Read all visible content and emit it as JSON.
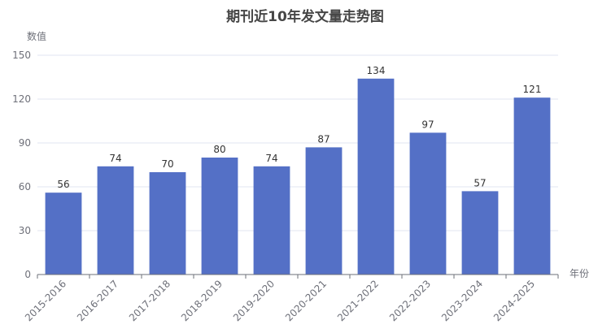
{
  "chart_data": {
    "type": "bar",
    "title": "期刊近10年发文量走势图",
    "xlabel": "年份",
    "ylabel": "数值",
    "categories": [
      "2015-2016",
      "2016-2017",
      "2017-2018",
      "2018-2019",
      "2019-2020",
      "2020-2021",
      "2021-2022",
      "2022-2023",
      "2023-2024",
      "2024-2025"
    ],
    "values": [
      56,
      74,
      70,
      80,
      74,
      87,
      134,
      97,
      57,
      121
    ],
    "yticks": [
      0,
      30,
      60,
      90,
      120,
      150
    ],
    "ylim": [
      0,
      150
    ],
    "grid": true,
    "colors": {
      "bar": "#5470c6"
    }
  }
}
